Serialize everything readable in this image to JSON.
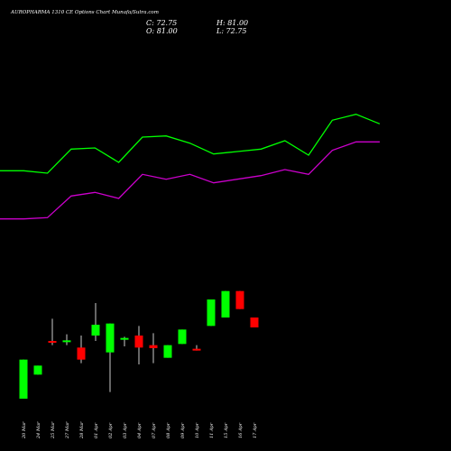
{
  "header": {
    "title": "AUROPHARMA 1310 CE Options Chart Munafa/Sutra.com",
    "close_label": "C: 72.75",
    "open_label": "O: 81.00",
    "high_label": "H: 81.00",
    "low_label": "L: 72.75"
  },
  "colors": {
    "background": "#000000",
    "upper_line": "#00ff00",
    "lower_line": "#cc00cc",
    "up_candle": "#00ff00",
    "down_candle": "#ff0000",
    "wick": "#ffffff",
    "text": "#ffffff"
  },
  "chart_data": {
    "type": "candlestick",
    "title": "AUROPHARMA 1310 CE Options Chart",
    "categories": [
      "20 Mar",
      "24 Mar",
      "25 Mar",
      "27 Mar",
      "28 Mar",
      "01 Apr",
      "02 Apr",
      "03 Apr",
      "04 Apr",
      "07 Apr",
      "08 Apr",
      "09 Apr",
      "10 Apr",
      "11 Apr",
      "15 Apr",
      "16 Apr",
      "17 Apr"
    ],
    "candles": [
      {
        "date": "20 Mar",
        "open": 13.5,
        "high": 46,
        "low": 13.5,
        "close": 46
      },
      {
        "date": "24 Mar",
        "open": 33.5,
        "high": 41,
        "low": 33.5,
        "close": 41
      },
      {
        "date": "25 Mar",
        "open": 61.5,
        "high": 80,
        "low": 58,
        "close": 60.5
      },
      {
        "date": "27 Mar",
        "open": 60.5,
        "high": 67,
        "low": 58,
        "close": 62
      },
      {
        "date": "28 Mar",
        "open": 56,
        "high": 66,
        "low": 43,
        "close": 46
      },
      {
        "date": "01 Apr",
        "open": 66,
        "high": 93,
        "low": 61.5,
        "close": 75
      },
      {
        "date": "02 Apr",
        "open": 52,
        "high": 76,
        "low": 19,
        "close": 76
      },
      {
        "date": "03 Apr",
        "open": 63.5,
        "high": 65,
        "low": 57,
        "close": 64
      },
      {
        "date": "04 Apr",
        "open": 66,
        "high": 74,
        "low": 42,
        "close": 56
      },
      {
        "date": "07 Apr",
        "open": 58,
        "high": 68,
        "low": 43,
        "close": 55.5
      },
      {
        "date": "08 Apr",
        "open": 47.5,
        "high": 58,
        "low": 47.5,
        "close": 58
      },
      {
        "date": "09 Apr",
        "open": 59,
        "high": 71,
        "low": 59,
        "close": 71
      },
      {
        "date": "10 Apr",
        "open": 55,
        "high": 58,
        "low": 53.5,
        "close": 53.5
      },
      {
        "date": "11 Apr",
        "open": 74,
        "high": 96,
        "low": 74,
        "close": 96
      },
      {
        "date": "15 Apr",
        "open": 81,
        "high": 103,
        "low": 81,
        "close": 103
      },
      {
        "date": "16 Apr",
        "open": 103,
        "high": 103,
        "low": 88,
        "close": 88
      },
      {
        "date": "17 Apr",
        "open": 81,
        "high": 81,
        "low": 72.75,
        "close": 72.75
      }
    ],
    "upper_line": [
      203,
      203,
      201,
      221,
      222,
      210,
      231,
      232,
      226,
      217,
      219,
      221,
      228,
      216,
      245,
      250,
      242
    ],
    "lower_line": [
      163,
      163,
      164,
      182,
      185,
      180,
      200,
      196,
      200,
      193,
      196,
      199,
      204,
      200,
      220,
      227,
      227
    ],
    "ylim": [
      0,
      300
    ],
    "grid": false,
    "legend": "none"
  }
}
